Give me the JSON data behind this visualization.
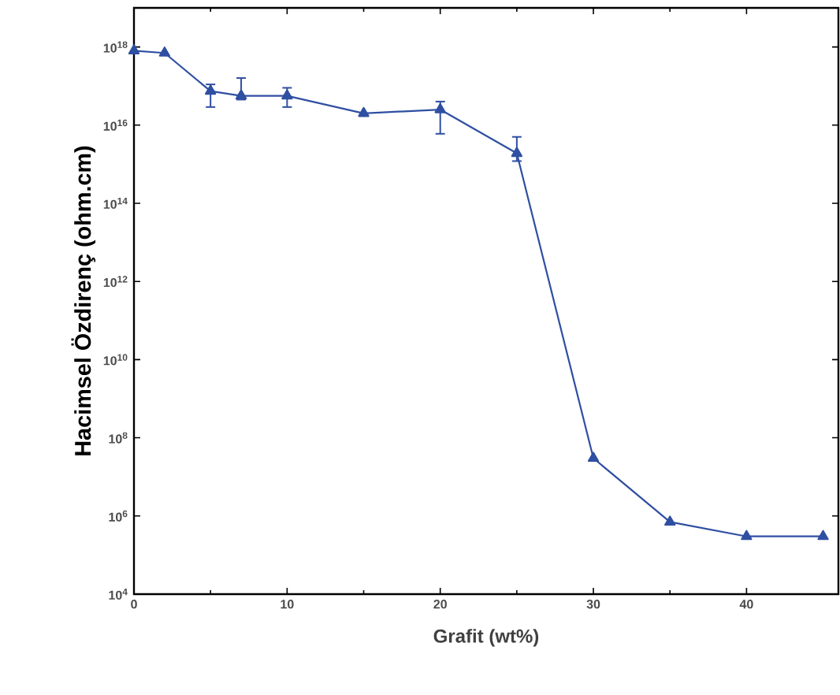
{
  "chart_data": {
    "type": "line",
    "xlabel": "Grafit (wt%)",
    "ylabel": "Hacimsel Özdirenç (ohm.cm)",
    "x": [
      0,
      2,
      5,
      7,
      10,
      15,
      20,
      25,
      30,
      35,
      40,
      45
    ],
    "series": [
      {
        "color": "#2f4fa2",
        "values": [
          8e+17,
          7e+17,
          7.4e+16,
          5.6e+16,
          5.6e+16,
          2e+16,
          2.5e+16,
          1900000000000000.0,
          30000000.0,
          700000.0,
          300000.0,
          300000.0
        ],
        "errors": [
          null,
          null,
          [
            2.9e+16,
            1.1e+17
          ],
          [
            4.5e+16,
            1.6e+17
          ],
          [
            2.9e+16,
            9e+16
          ],
          null,
          [
            6000000000000000.0,
            4e+16
          ],
          [
            1200000000000000.0,
            5000000000000000.0
          ],
          null,
          null,
          null,
          null
        ]
      }
    ],
    "log": "y",
    "marker": "triangle",
    "line_style": "solid",
    "xlim": [
      0,
      46
    ],
    "xticks": [
      0,
      10,
      20,
      30,
      40
    ],
    "ylim": [
      10000.0,
      1e+19
    ],
    "yticks": [
      {
        "value": 10000.0,
        "label": "10$^{4}$"
      },
      {
        "value": 1000000.0,
        "label": "10$^{6}$"
      },
      {
        "value": 100000000.0,
        "label": "10$^{8}$"
      },
      {
        "value": 10000000000.0,
        "label": "10$^{10}$"
      },
      {
        "value": 1000000000000.0,
        "label": "10$^{12}$"
      },
      {
        "value": 100000000000000.0,
        "label": "10$^{14}$"
      },
      {
        "value": 1e+16,
        "label": "10$^{16}$"
      },
      {
        "value": 1e+18,
        "label": "10$^{18}$"
      }
    ]
  }
}
